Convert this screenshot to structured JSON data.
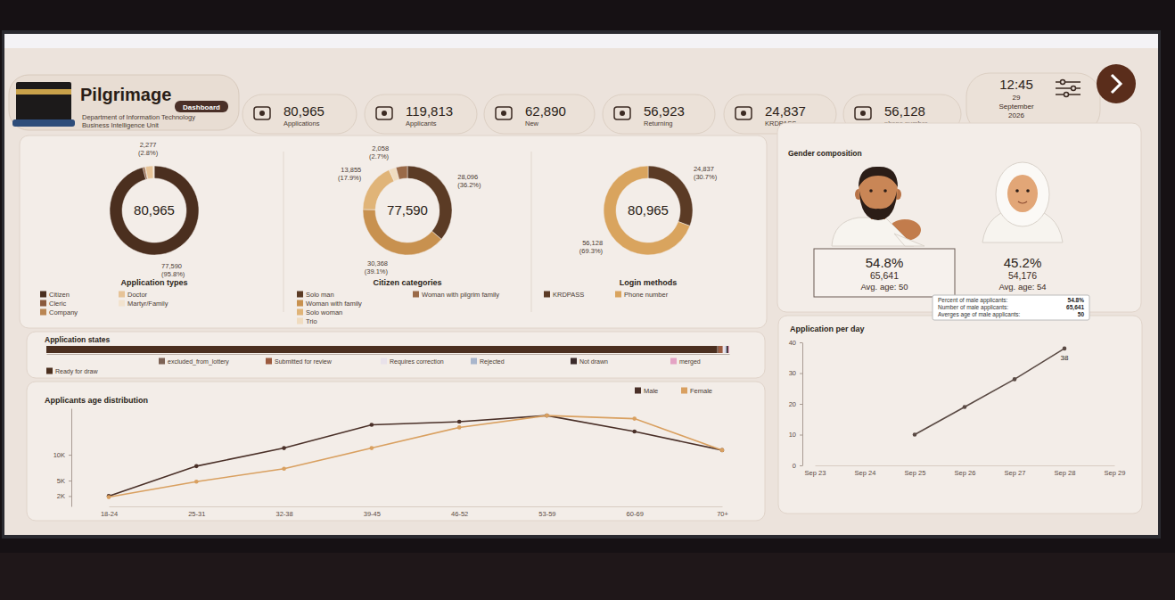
{
  "header": {
    "title": "Pilgrimage",
    "badge": "Dashboard",
    "lines": [
      "Department of Information Technology",
      "Business Intelligence Unit"
    ]
  },
  "kpis": [
    {
      "value": "80,965",
      "label": "Applications"
    },
    {
      "value": "119,813",
      "label": "Applicants"
    },
    {
      "value": "62,890",
      "label": "New"
    },
    {
      "value": "56,923",
      "label": "Returning"
    },
    {
      "value": "24,837",
      "label": "KRDPASS"
    },
    {
      "value": "56,128",
      "label": "phone number"
    }
  ],
  "clock": {
    "time": "12:45",
    "day": "29",
    "month": "September",
    "year": "2026"
  },
  "gender": {
    "title": "Gender composition",
    "groups": [
      {
        "percent": "54.8%",
        "count": "65,641",
        "avg_age": "Avg. age: 50"
      },
      {
        "percent": "45.2%",
        "count": "54,176",
        "avg_age": "Avg. age: 54"
      }
    ],
    "tooltip": [
      {
        "label": "Percent of male applicants:",
        "value": "54.8%"
      },
      {
        "label": "Number of male applicants:",
        "value": "65,641"
      },
      {
        "label": "Averges age of male applicants:",
        "value": "50"
      }
    ]
  },
  "chart_data": [
    {
      "type": "donut",
      "title": "Application types",
      "center_label": "80,965",
      "categories": [
        "Citizen",
        "Cleric",
        "Company",
        "Doctor",
        "Martyr/Family"
      ],
      "values": [
        77590,
        600,
        198,
        2277,
        300
      ],
      "colors": [
        "#4b2f1f",
        "#8a5a3c",
        "#b98552",
        "#e6c397",
        "#f2e3cf"
      ],
      "data_labels": true,
      "value_labels": [
        "77,590\n(95.8%)",
        null,
        null,
        "2,277\n(2.8%)",
        null
      ],
      "legend": "bottom"
    },
    {
      "type": "donut",
      "title": "Citizen categories",
      "center_label": "77,590",
      "categories": [
        "Solo man",
        "Woman with family",
        "Solo woman",
        "Trio",
        "Woman with pilgrim family"
      ],
      "values": [
        28096,
        30368,
        13855,
        2058,
        3213
      ],
      "colors": [
        "#5b3b25",
        "#c8914f",
        "#e0b478",
        "#f0dcc0",
        "#9a6a48"
      ],
      "data_labels": true,
      "value_labels": [
        "28,096\n(36.2%)",
        "30,368\n(39.1%)",
        "13,855\n(17.9%)",
        "2,058\n(2.7%)",
        null
      ],
      "legend": "bottom"
    },
    {
      "type": "donut",
      "title": "Login methods",
      "center_label": "80,965",
      "categories": [
        "KRDPASS",
        "Phone number"
      ],
      "values": [
        24837,
        56128
      ],
      "colors": [
        "#5b3b25",
        "#d9a45e"
      ],
      "data_labels": true,
      "value_labels": [
        "24,837\n(30.7%)",
        "56,128\n(69.3%)"
      ],
      "legend": "bottom"
    },
    {
      "type": "bar",
      "title": "Application states",
      "orientation": "horizontal",
      "stacked": true,
      "tick_labels": false,
      "legend": "bottom",
      "xlim": [
        0,
        80965
      ],
      "series": [
        {
          "name": "Ready for draw",
          "color": "#4b2f1f",
          "values": [
            79500
          ]
        },
        {
          "name": "excluded_from_lottery",
          "color": "#7d6255",
          "values": [
            200
          ]
        },
        {
          "name": "Submitted for review",
          "color": "#9c5b3f",
          "values": [
            500
          ]
        },
        {
          "name": "Requires correction",
          "color": "#e9e2ea",
          "values": [
            300
          ]
        },
        {
          "name": "Rejected",
          "color": "#a9b6cc",
          "values": [
            150
          ]
        },
        {
          "name": "Not drawn",
          "color": "#3b2b2b",
          "values": [
            200
          ]
        },
        {
          "name": "merged",
          "color": "#e4a3c4",
          "values": [
            115
          ]
        }
      ]
    },
    {
      "type": "line",
      "title": "Applicants age distribution",
      "categories": [
        "18-24",
        "25-31",
        "32-38",
        "39-45",
        "46-52",
        "53-59",
        "60-69",
        "70+"
      ],
      "series": [
        {
          "name": "Male",
          "color": "#4a3028",
          "values": [
            2000,
            7800,
            11300,
            15800,
            16400,
            17600,
            14500,
            10900
          ]
        },
        {
          "name": "Female",
          "color": "#d9a060",
          "values": [
            1800,
            4800,
            7300,
            11300,
            15300,
            17600,
            17000,
            10900
          ]
        }
      ],
      "ylim": [
        0,
        19000
      ],
      "yticks": [
        {
          "value": 2000,
          "label": "2K"
        },
        {
          "value": 5000,
          "label": "5K"
        },
        {
          "value": 10000,
          "label": "10K"
        }
      ],
      "legend": "top-right",
      "marker": "circle",
      "grid": false
    },
    {
      "type": "line",
      "title": "Application per day",
      "categories": [
        "Sep 23",
        "Sep 24",
        "Sep 25",
        "Sep 26",
        "Sep 27",
        "Sep 28",
        "Sep 29"
      ],
      "values": [
        null,
        null,
        10,
        19,
        28,
        38,
        null
      ],
      "color": "#5a4a44",
      "ylim": [
        0,
        40
      ],
      "yticks": [
        0,
        10,
        20,
        30,
        40
      ],
      "marker": "circle",
      "data_labels": true,
      "value_labels": [
        null,
        null,
        null,
        null,
        null,
        "38",
        null
      ],
      "grid": false
    }
  ]
}
